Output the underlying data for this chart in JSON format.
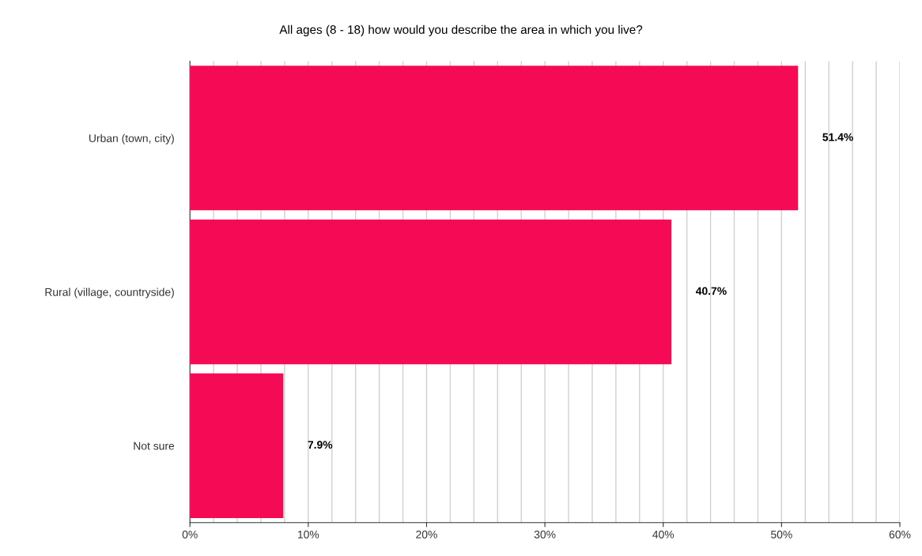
{
  "chart_data": {
    "type": "bar",
    "orientation": "horizontal",
    "title": "All ages (8 - 18) how would you describe the area in which you live?",
    "categories": [
      "Urban (town, city)",
      "Rural (village, countryside)",
      "Not sure"
    ],
    "values": [
      51.4,
      40.7,
      7.9
    ],
    "color": "#f50a55",
    "value_labels": [
      "51.4%",
      "40.7%",
      "7.9%"
    ],
    "xlim": [
      0,
      60
    ],
    "xticks": [
      {
        "value": 0,
        "label": "0%"
      },
      {
        "value": 2,
        "label": null
      },
      {
        "value": 4,
        "label": null
      },
      {
        "value": 6,
        "label": null
      },
      {
        "value": 8,
        "label": null
      },
      {
        "value": 10,
        "label": "10%"
      },
      {
        "value": 12,
        "label": null
      },
      {
        "value": 14,
        "label": null
      },
      {
        "value": 16,
        "label": null
      },
      {
        "value": 18,
        "label": null
      },
      {
        "value": 20,
        "label": "20%"
      },
      {
        "value": 22,
        "label": null
      },
      {
        "value": 24,
        "label": null
      },
      {
        "value": 26,
        "label": null
      },
      {
        "value": 28,
        "label": null
      },
      {
        "value": 30,
        "label": "30%"
      },
      {
        "value": 32,
        "label": null
      },
      {
        "value": 34,
        "label": null
      },
      {
        "value": 36,
        "label": null
      },
      {
        "value": 38,
        "label": null
      },
      {
        "value": 40,
        "label": "40%"
      },
      {
        "value": 42,
        "label": null
      },
      {
        "value": 44,
        "label": null
      },
      {
        "value": 46,
        "label": null
      },
      {
        "value": 48,
        "label": null
      },
      {
        "value": 50,
        "label": "50%"
      },
      {
        "value": 52,
        "label": null
      },
      {
        "value": 54,
        "label": null
      },
      {
        "value": 56,
        "label": null
      },
      {
        "value": 58,
        "label": null
      },
      {
        "value": 60,
        "label": "60%"
      }
    ],
    "grid": "x",
    "legend": false
  }
}
